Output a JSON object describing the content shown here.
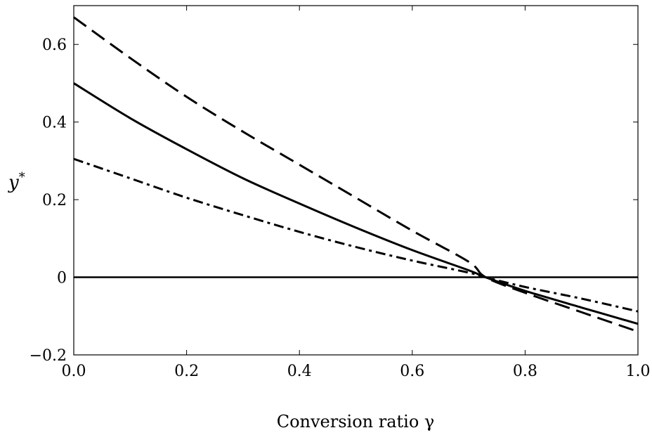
{
  "chart_data": {
    "type": "line",
    "title": "",
    "xlabel": "Conversion ratio γ",
    "ylabel": "y",
    "ylabel_sup": "*",
    "xlim": [
      0.0,
      1.0
    ],
    "ylim": [
      -0.2,
      0.7
    ],
    "grid": false,
    "x_ticks": [
      0.0,
      0.2,
      0.4,
      0.6,
      0.8,
      1.0
    ],
    "x_tick_labels": [
      "0.0",
      "0.2",
      "0.4",
      "0.6",
      "0.8",
      "1.0"
    ],
    "y_ticks": [
      -0.2,
      0.0,
      0.2,
      0.4,
      0.6
    ],
    "y_tick_labels": [
      "−0.2",
      "0",
      "0.2",
      "0.4",
      "0.6"
    ],
    "reference_line": {
      "y": 0
    },
    "series": [
      {
        "style": "dashed",
        "x": [
          0.0,
          0.1,
          0.2,
          0.3,
          0.4,
          0.5,
          0.6,
          0.7,
          0.73,
          0.8,
          0.9,
          1.0
        ],
        "y": [
          0.67,
          0.565,
          0.465,
          0.375,
          0.29,
          0.205,
          0.12,
          0.04,
          0.0,
          -0.04,
          -0.09,
          -0.14
        ]
      },
      {
        "style": "solid",
        "x": [
          0.0,
          0.1,
          0.2,
          0.3,
          0.4,
          0.5,
          0.6,
          0.7,
          0.73,
          0.8,
          0.9,
          1.0
        ],
        "y": [
          0.5,
          0.41,
          0.33,
          0.255,
          0.19,
          0.128,
          0.07,
          0.018,
          0.0,
          -0.035,
          -0.078,
          -0.12
        ]
      },
      {
        "style": "dashdot",
        "x": [
          0.0,
          0.1,
          0.2,
          0.3,
          0.4,
          0.5,
          0.6,
          0.7,
          0.73,
          0.8,
          0.9,
          1.0
        ],
        "y": [
          0.305,
          0.255,
          0.205,
          0.16,
          0.117,
          0.078,
          0.043,
          0.012,
          0.0,
          -0.025,
          -0.055,
          -0.088
        ]
      }
    ]
  }
}
